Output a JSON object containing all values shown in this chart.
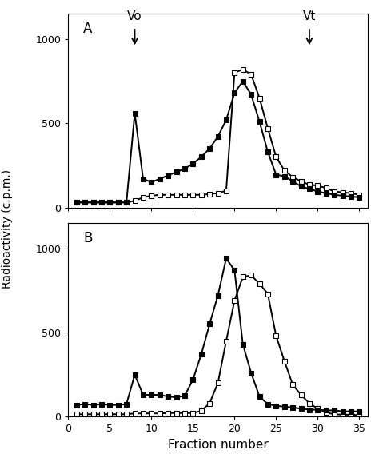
{
  "panel_A": {
    "label": "A",
    "filled_squares": {
      "x": [
        1,
        2,
        3,
        4,
        5,
        6,
        7,
        8,
        9,
        10,
        11,
        12,
        13,
        14,
        15,
        16,
        17,
        18,
        19,
        20,
        21,
        22,
        23,
        24,
        25,
        26,
        27,
        28,
        29,
        30,
        31,
        32,
        33,
        34,
        35
      ],
      "y": [
        30,
        30,
        30,
        30,
        30,
        30,
        30,
        560,
        170,
        150,
        170,
        190,
        210,
        230,
        260,
        300,
        350,
        420,
        520,
        680,
        750,
        670,
        510,
        330,
        195,
        185,
        155,
        125,
        110,
        95,
        85,
        75,
        70,
        65,
        60
      ]
    },
    "open_squares": {
      "x": [
        1,
        2,
        3,
        4,
        5,
        6,
        7,
        8,
        9,
        10,
        11,
        12,
        13,
        14,
        15,
        16,
        17,
        18,
        19,
        20,
        21,
        22,
        23,
        24,
        25,
        26,
        27,
        28,
        29,
        30,
        31,
        32,
        33,
        34,
        35
      ],
      "y": [
        30,
        30,
        30,
        30,
        30,
        30,
        30,
        40,
        60,
        70,
        75,
        75,
        75,
        75,
        75,
        75,
        80,
        85,
        100,
        800,
        820,
        790,
        650,
        470,
        300,
        220,
        180,
        155,
        135,
        130,
        115,
        95,
        90,
        85,
        75
      ]
    },
    "Vo_x": 8,
    "Vt_x": 29,
    "ylim": [
      0,
      1150
    ],
    "yticks": [
      0,
      500,
      1000
    ]
  },
  "panel_B": {
    "label": "B",
    "filled_squares": {
      "x": [
        1,
        2,
        3,
        4,
        5,
        6,
        7,
        8,
        9,
        10,
        11,
        12,
        13,
        14,
        15,
        16,
        17,
        18,
        19,
        20,
        21,
        22,
        23,
        24,
        25,
        26,
        27,
        28,
        29,
        30,
        31,
        32,
        33,
        34,
        35
      ],
      "y": [
        70,
        75,
        70,
        75,
        70,
        70,
        75,
        250,
        130,
        130,
        130,
        120,
        115,
        125,
        220,
        370,
        550,
        720,
        940,
        870,
        430,
        260,
        120,
        75,
        65,
        60,
        55,
        48,
        42,
        42,
        38,
        38,
        32,
        32,
        32
      ]
    },
    "open_squares": {
      "x": [
        1,
        2,
        3,
        4,
        5,
        6,
        7,
        8,
        9,
        10,
        11,
        12,
        13,
        14,
        15,
        16,
        17,
        18,
        19,
        20,
        21,
        22,
        23,
        24,
        25,
        26,
        27,
        28,
        29,
        30,
        31,
        32,
        33,
        34,
        35
      ],
      "y": [
        15,
        15,
        15,
        15,
        15,
        15,
        15,
        20,
        20,
        20,
        20,
        22,
        22,
        22,
        22,
        35,
        80,
        200,
        450,
        690,
        830,
        840,
        790,
        730,
        480,
        330,
        190,
        130,
        80,
        48,
        25,
        15,
        12,
        12,
        10
      ]
    },
    "ylim": [
      0,
      1150
    ],
    "yticks": [
      0,
      500,
      1000
    ]
  },
  "xlabel": "Fraction number",
  "ylabel": "Radioactivity (c.p.m.)",
  "xlim": [
    0,
    36
  ],
  "xticks": [
    0,
    5,
    10,
    15,
    20,
    25,
    30,
    35
  ],
  "bg_color": "#ffffff",
  "line_color": "#000000",
  "markersize": 4.5,
  "linewidth": 1.4
}
